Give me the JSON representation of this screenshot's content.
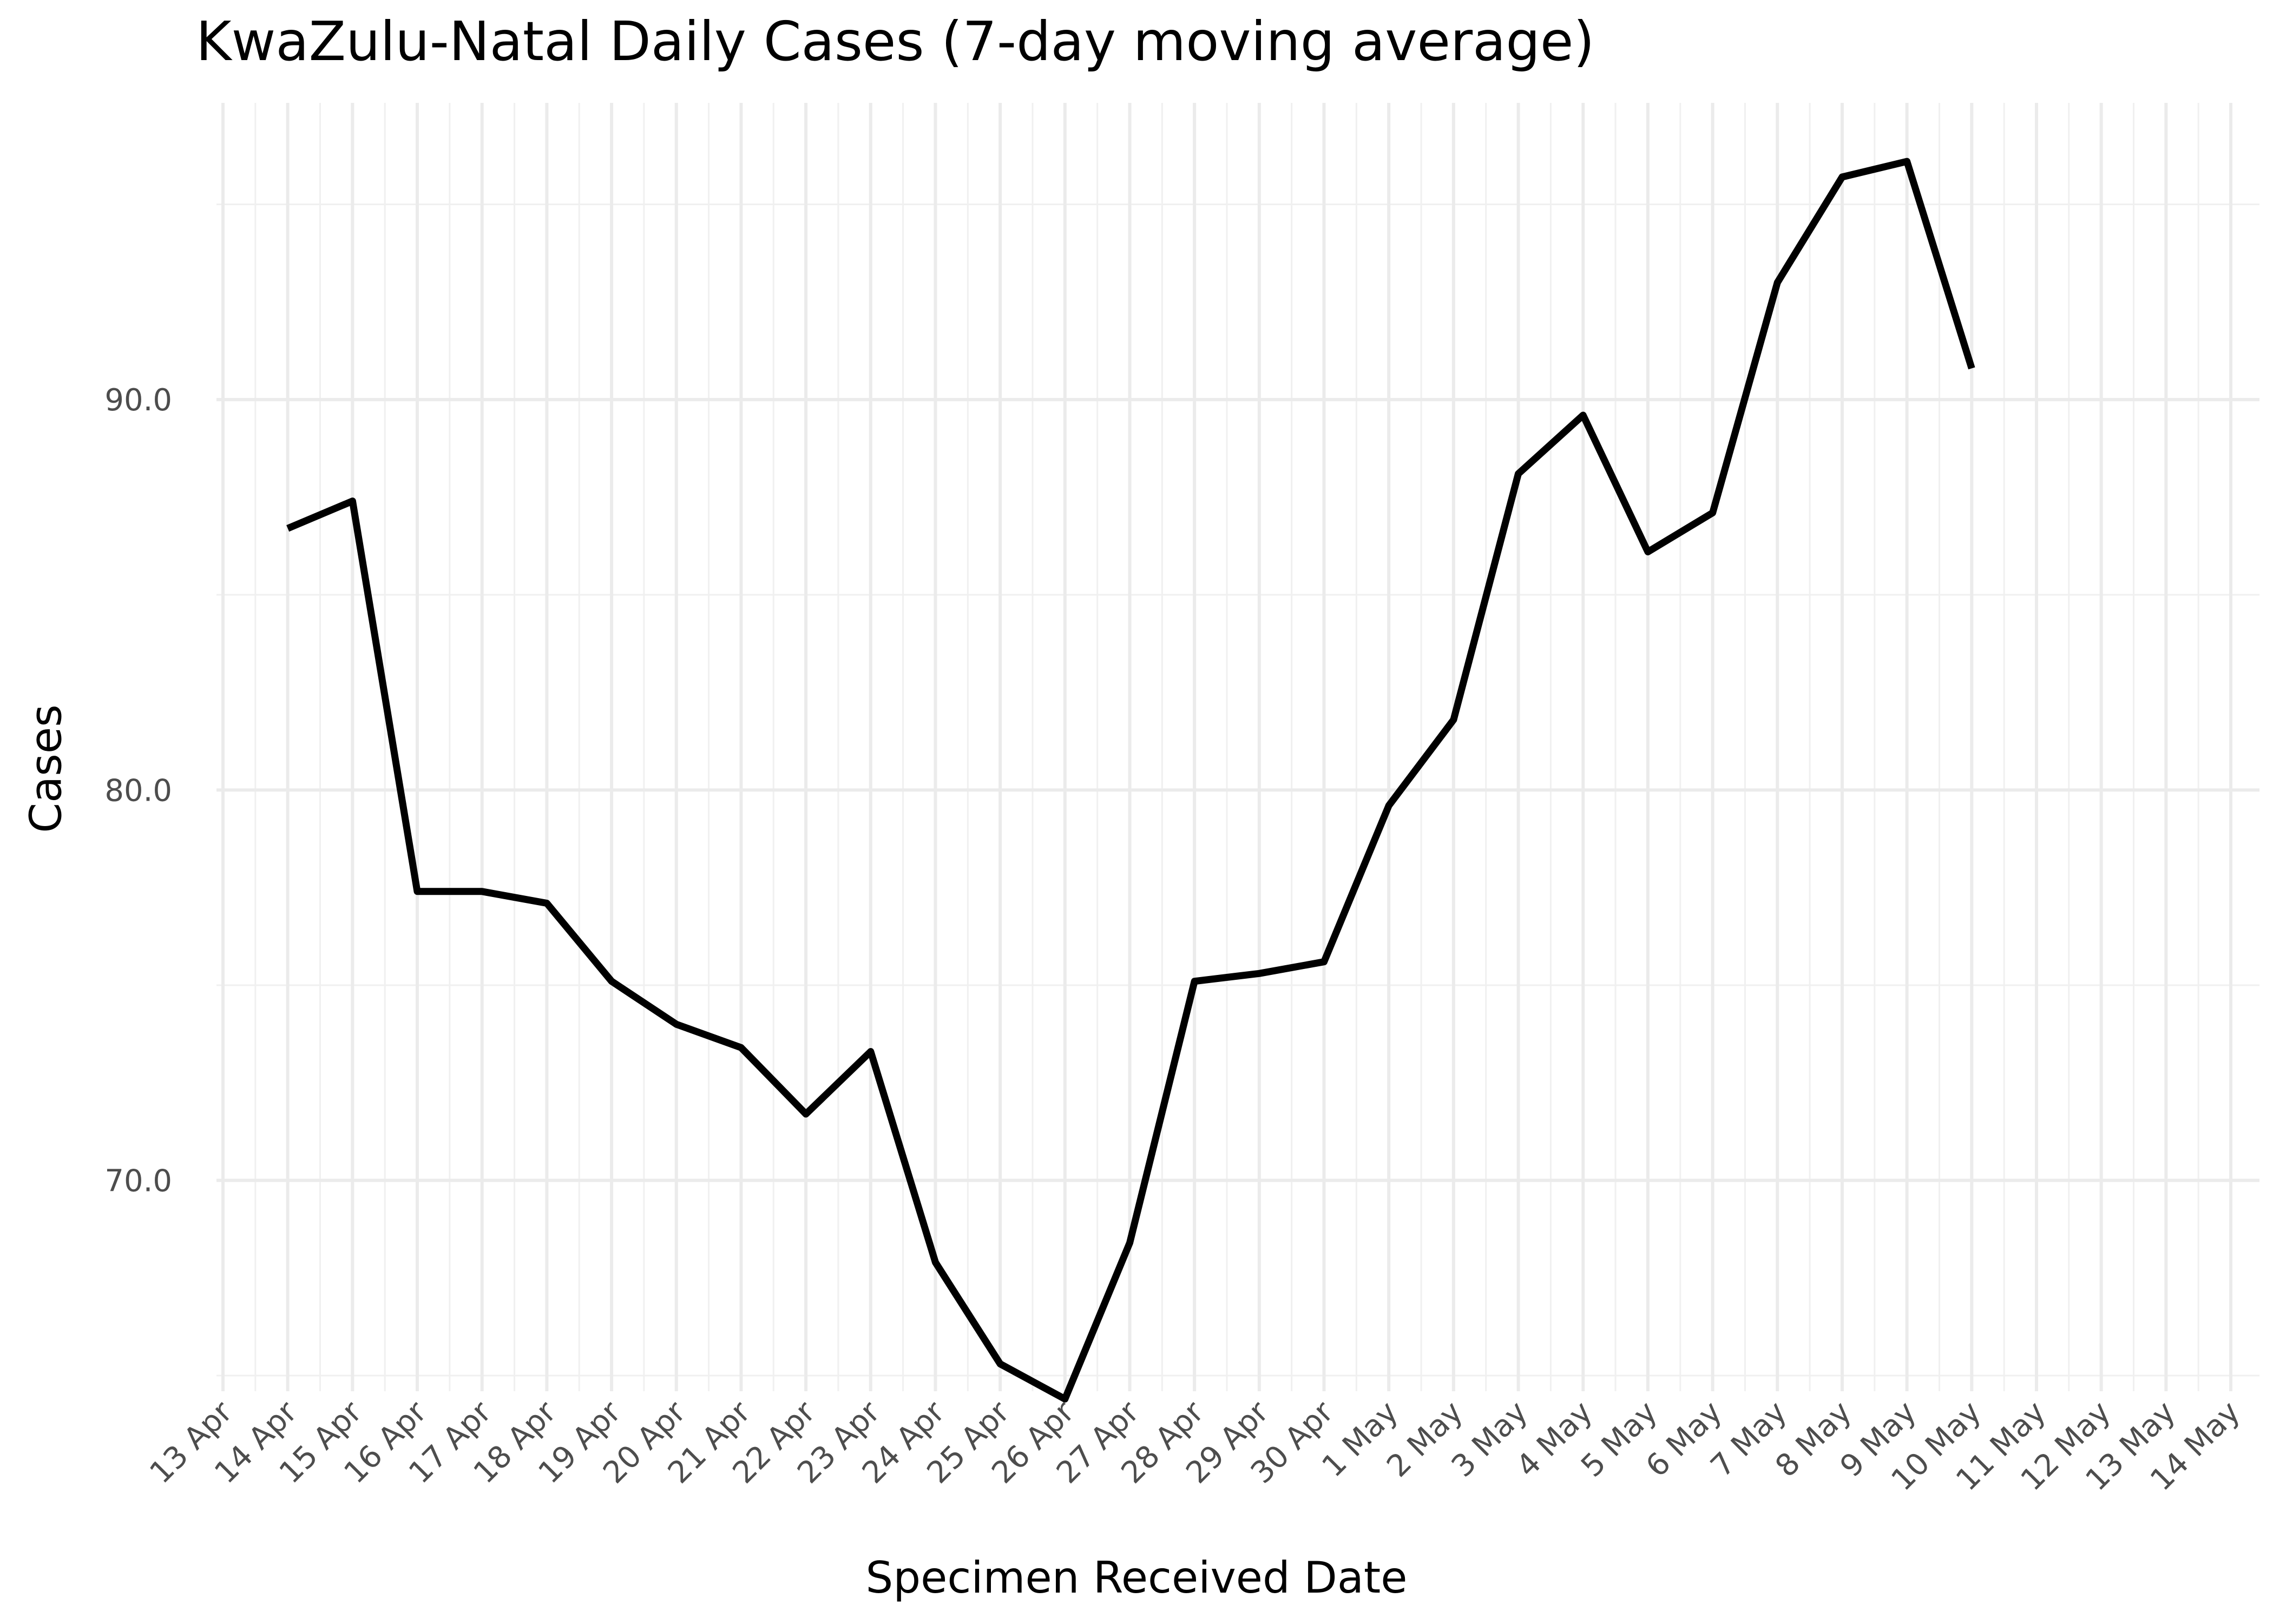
{
  "chart_data": {
    "type": "line",
    "title": "KwaZulu-Natal Daily Cases (7-day moving average)",
    "xlabel": "Specimen Received Date",
    "ylabel": "Cases",
    "x_tick_labels": [
      "13 Apr",
      "14 Apr",
      "15 Apr",
      "16 Apr",
      "17 Apr",
      "18 Apr",
      "19 Apr",
      "20 Apr",
      "21 Apr",
      "22 Apr",
      "23 Apr",
      "24 Apr",
      "25 Apr",
      "26 Apr",
      "27 Apr",
      "28 Apr",
      "29 Apr",
      "30 Apr",
      "1 May",
      "2 May",
      "3 May",
      "4 May",
      "5 May",
      "6 May",
      "7 May",
      "8 May",
      "9 May",
      "10 May",
      "11 May",
      "12 May",
      "13 May",
      "14 May"
    ],
    "y_tick_labels": [
      "70.0",
      "80.0",
      "90.0"
    ],
    "y_ticks": [
      70,
      80,
      90
    ],
    "ylim": [
      64.6,
      97.6
    ],
    "xlim": [
      "13 Apr",
      "14 May"
    ],
    "grid": true,
    "line_color": "#000000",
    "series": [
      {
        "x": [
          "14 Apr",
          "15 Apr",
          "16 Apr",
          "17 Apr",
          "18 Apr",
          "19 Apr",
          "20 Apr",
          "21 Apr",
          "22 Apr",
          "23 Apr",
          "24 Apr",
          "25 Apr",
          "26 Apr",
          "27 Apr",
          "28 Apr",
          "29 Apr",
          "30 Apr",
          "1 May",
          "2 May",
          "3 May",
          "4 May",
          "5 May",
          "6 May",
          "7 May",
          "8 May",
          "9 May",
          "10 May"
        ],
        "values": [
          86.7,
          87.4,
          77.4,
          77.4,
          77.1,
          75.1,
          74.0,
          73.4,
          71.7,
          73.3,
          67.9,
          65.3,
          64.4,
          68.4,
          75.1,
          75.3,
          75.6,
          79.6,
          81.8,
          88.1,
          89.6,
          86.1,
          87.1,
          93.0,
          95.7,
          96.1,
          90.8
        ]
      }
    ]
  }
}
